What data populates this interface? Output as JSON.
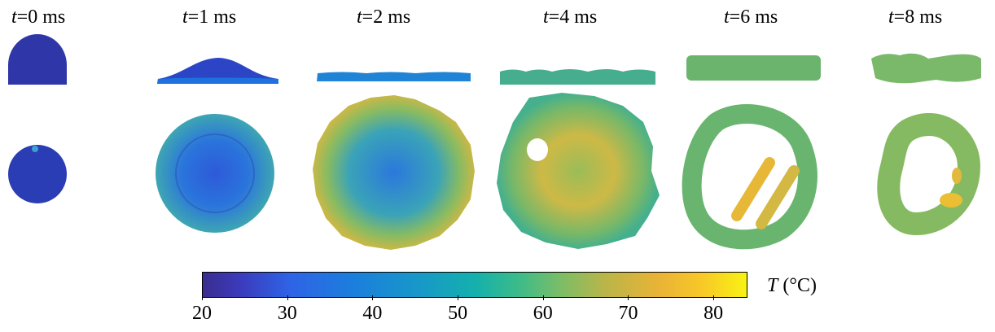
{
  "time_labels": [
    {
      "var": "t",
      "rest": "=0 ms"
    },
    {
      "var": "t",
      "rest": "=1 ms"
    },
    {
      "var": "t",
      "rest": "=2 ms"
    },
    {
      "var": "t",
      "rest": "=4 ms"
    },
    {
      "var": "t",
      "rest": "=6 ms"
    },
    {
      "var": "t",
      "rest": "=8 ms"
    }
  ],
  "colorbar": {
    "var": "T",
    "unit": " (°C)",
    "min": 20,
    "max": 84,
    "ticks": [
      "20",
      "30",
      "40",
      "50",
      "60",
      "70",
      "80"
    ],
    "colormap": [
      "#3a2d8f",
      "#2f63e6",
      "#1799c8",
      "#14b0ad",
      "#7dbd66",
      "#eab336",
      "#f8f313"
    ]
  },
  "colors": {
    "cold": "#2a3cae",
    "blue": "#1f6fe0",
    "teal": "#1aa3b9",
    "green": "#6db86e",
    "yellow": "#f0c331"
  }
}
